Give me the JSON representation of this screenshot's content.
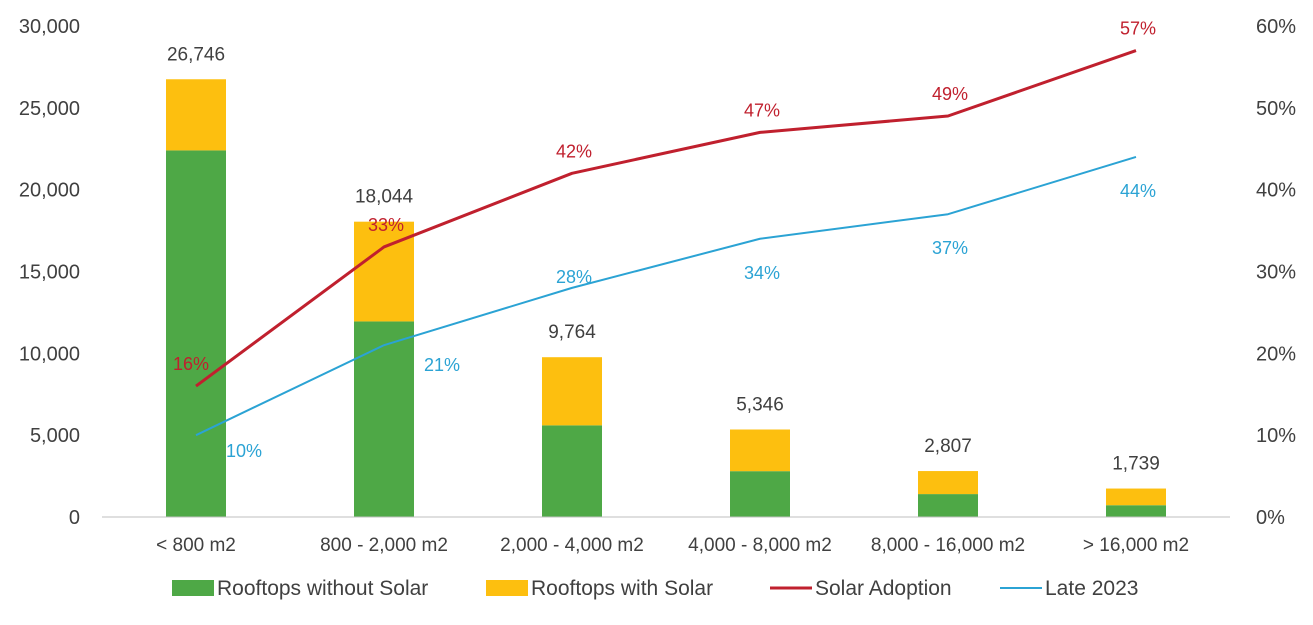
{
  "chart_data": {
    "type": "bar",
    "stacked": true,
    "categories": [
      "< 800 m2",
      "800 - 2,000 m2",
      "2,000 - 4,000 m2",
      "4,000 - 8,000 m2",
      "8,000 - 16,000 m2",
      "> 16,000 m2"
    ],
    "series": [
      {
        "name": "Rooftops without Solar",
        "kind": "bar",
        "axis": "left",
        "color": "#4EA846",
        "values": [
          22400,
          11950,
          5600,
          2800,
          1400,
          720
        ]
      },
      {
        "name": "Rooftops with Solar",
        "kind": "bar",
        "axis": "left",
        "color": "#FDBF0F",
        "values": [
          4346,
          6094,
          4164,
          2546,
          1407,
          1019
        ]
      },
      {
        "name": "Solar Adoption",
        "kind": "line",
        "axis": "right",
        "color": "#C0202E",
        "values": [
          16,
          33,
          42,
          47,
          49,
          57
        ],
        "labels": [
          "16%",
          "33%",
          "42%",
          "47%",
          "49%",
          "57%"
        ]
      },
      {
        "name": "Late 2023",
        "kind": "line",
        "axis": "right",
        "color": "#2BA3D4",
        "values": [
          10,
          21,
          28,
          34,
          37,
          44
        ],
        "labels": [
          "10%",
          "21%",
          "28%",
          "34%",
          "37%",
          "44%"
        ]
      }
    ],
    "totals": [
      "26,746",
      "18,044",
      "9,764",
      "5,346",
      "2,807",
      "1,739"
    ],
    "totals_values": [
      26746,
      18044,
      9764,
      5346,
      2807,
      1739
    ],
    "y_left": {
      "range": [
        0,
        30000
      ],
      "ticks": [
        0,
        5000,
        10000,
        15000,
        20000,
        25000,
        30000
      ],
      "tick_labels": [
        "0",
        "5,000",
        "10,000",
        "15,000",
        "20,000",
        "25,000",
        "30,000"
      ]
    },
    "y_right": {
      "range": [
        0,
        60
      ],
      "ticks": [
        0,
        10,
        20,
        30,
        40,
        50,
        60
      ],
      "tick_labels": [
        "0%",
        "10%",
        "20%",
        "30%",
        "40%",
        "50%",
        "60%"
      ]
    },
    "title": "",
    "xlabel": "",
    "ylabel": "",
    "grid": false,
    "legend_position": "bottom"
  }
}
